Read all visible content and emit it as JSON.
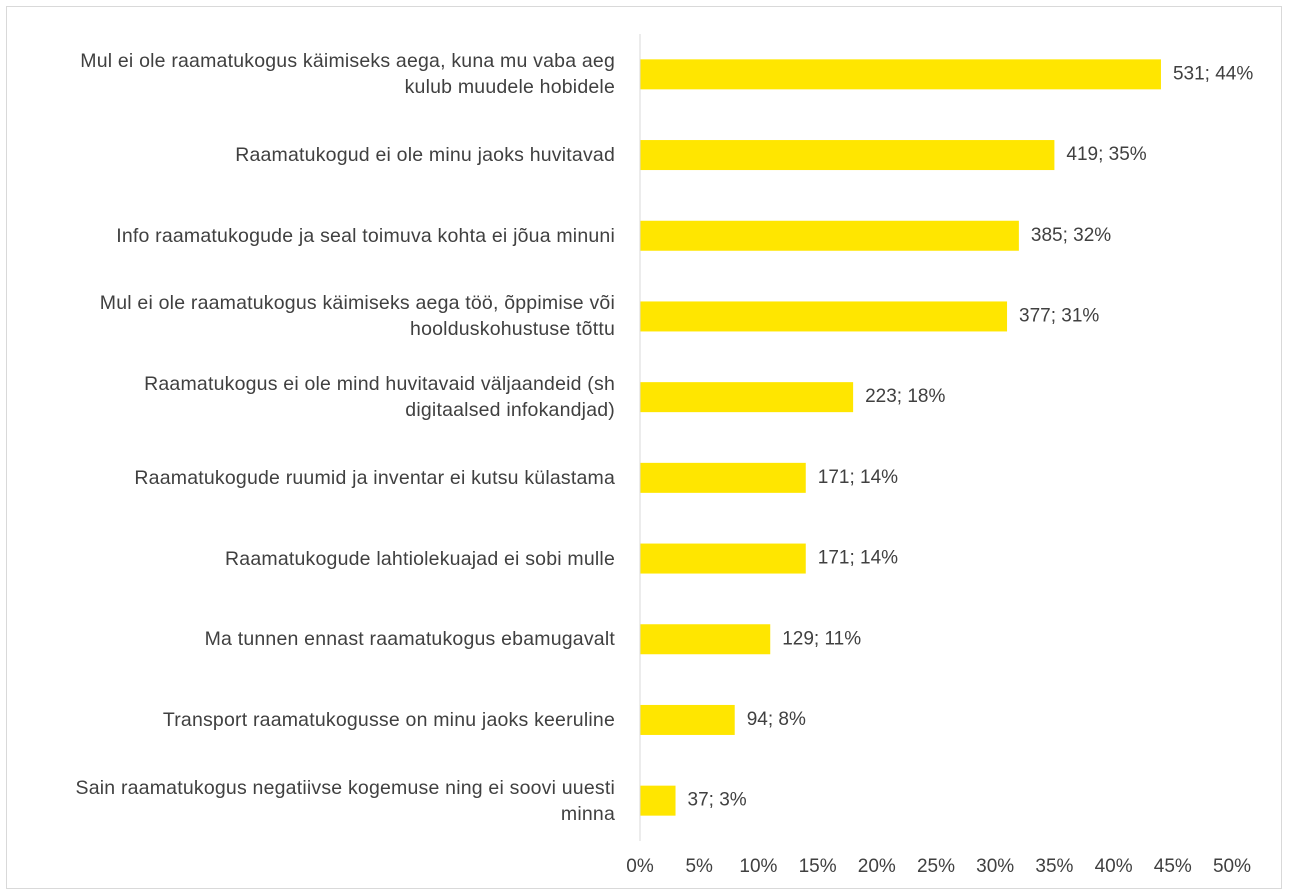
{
  "chart_data": {
    "type": "bar",
    "orientation": "horizontal",
    "categories": [
      "Mul ei ole raamatukogus käimiseks aega, kuna mu vaba aeg kulub muudele hobidele",
      "Raamatukogud ei ole minu jaoks huvitavad",
      "Info raamatukogude ja seal toimuva kohta ei jõua minuni",
      "Mul ei ole raamatukogus käimiseks aega töö, õppimise või hoolduskohustuse tõttu",
      "Raamatukogus ei ole mind huvitavaid väljaandeid (sh digitaalsed infokandjad)",
      "Raamatukogude ruumid ja inventar ei kutsu külastama",
      "Raamatukogude lahtiolekuajad ei sobi mulle",
      "Ma tunnen ennast raamatukogus ebamugavalt",
      "Transport raamatukogusse on minu jaoks keeruline",
      "Sain raamatukogus negatiivse kogemuse ning ei soovi uuesti minna"
    ],
    "values": [
      44,
      35,
      32,
      31,
      18,
      14,
      14,
      11,
      8,
      3
    ],
    "value_labels": [
      "531; 44%",
      "419; 35%",
      "385; 32%",
      "377; 31%",
      "223; 18%",
      "171; 14%",
      "171; 14%",
      "129; 11%",
      "94; 8%",
      "37; 3%"
    ],
    "color": "#ffe600",
    "xlim": [
      0,
      50
    ],
    "xticks": [
      {
        "value": 0,
        "label": "0%"
      },
      {
        "value": 5,
        "label": "5%"
      },
      {
        "value": 10,
        "label": "10%"
      },
      {
        "value": 15,
        "label": "15%"
      },
      {
        "value": 20,
        "label": "20%"
      },
      {
        "value": 25,
        "label": "25%"
      },
      {
        "value": 30,
        "label": "30%"
      },
      {
        "value": 35,
        "label": "35%"
      },
      {
        "value": 40,
        "label": "40%"
      },
      {
        "value": 45,
        "label": "45%"
      },
      {
        "value": 50,
        "label": "50%"
      }
    ],
    "grid": false
  }
}
